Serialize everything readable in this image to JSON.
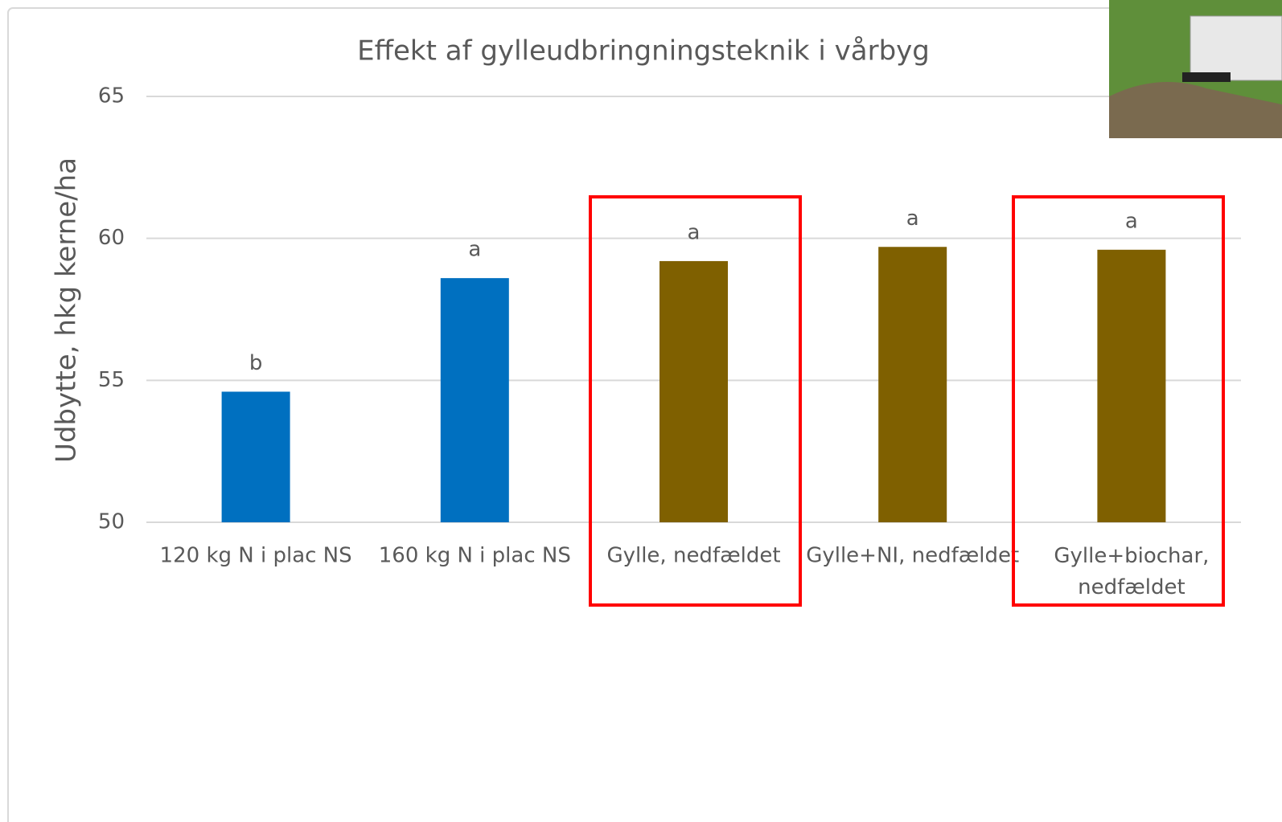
{
  "chart_data": {
    "type": "bar",
    "title": "Effekt af gylleudbringningsteknik i vårbyg",
    "y_label": "Udbytte, hkg kerne/ha",
    "categories": [
      "120 kg N i plac NS",
      "160 kg N i plac NS",
      "Gylle, nedfældet",
      "Gylle+NI, nedfældet",
      "Gylle+biochar, nedfældet"
    ],
    "values": [
      54.6,
      58.6,
      59.2,
      59.7,
      59.6
    ],
    "colors": [
      "#0070c0",
      "#0070c0",
      "#7f6000",
      "#7f6000",
      "#7f6000"
    ],
    "annotations": [
      "b",
      "a",
      "a",
      "a",
      "a"
    ],
    "ylim": [
      50,
      65
    ],
    "yticks": [
      50,
      55,
      60,
      65
    ],
    "grid": true
  }
}
